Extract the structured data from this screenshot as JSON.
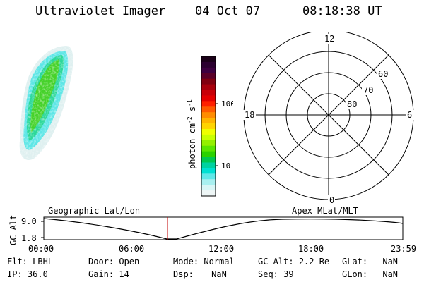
{
  "header": {
    "instrument": "Ultraviolet Imager",
    "date": "04 Oct 07",
    "time": "08:18:38 UT"
  },
  "colorbar": {
    "label": "photon cm^-2 s^-1",
    "tick_labels": [
      "100",
      "10"
    ],
    "scale": "log",
    "colors": [
      "#1a0018",
      "#2b0030",
      "#3d0040",
      "#5a0028",
      "#800010",
      "#a8000c",
      "#c80008",
      "#e40000",
      "#ff2000",
      "#ff5a00",
      "#ff8c00",
      "#ffb400",
      "#ffd400",
      "#f0ff00",
      "#c8ff00",
      "#94f000",
      "#5ae600",
      "#2ad200",
      "#00c850",
      "#00d2a0",
      "#00e0d2",
      "#60e8e8",
      "#a8f0f0",
      "#d8f6f6",
      "#eef6f6"
    ]
  },
  "polar_grid": {
    "mlt_labels": {
      "top": "12",
      "bottom": "0",
      "left": "18",
      "right": "6"
    },
    "lat_labels": [
      "60",
      "70",
      "80"
    ]
  },
  "orbit_panel": {
    "y_axis_label": "GC Alt",
    "y_ticks": [
      "9.0",
      "1.8"
    ],
    "left_title": "Geographic Lat/Lon",
    "right_title": "Apex MLat/MLT",
    "x_ticks": [
      "00:00",
      "06:00",
      "12:00",
      "18:00",
      "23:59"
    ],
    "current_time_marker": "08:18",
    "marker_color": "#c00000"
  },
  "info": {
    "flt": {
      "label": "Flt:",
      "value": "LBHL"
    },
    "ip": {
      "label": "IP:",
      "value": "36.0"
    },
    "door": {
      "label": "Door:",
      "value": "Open"
    },
    "gain": {
      "label": "Gain:",
      "value": "14"
    },
    "mode": {
      "label": "Mode:",
      "value": "Normal"
    },
    "dsp": {
      "label": "Dsp:",
      "value": "NaN"
    },
    "gcalt": {
      "label": "GC Alt:",
      "value": "2.2 Re"
    },
    "seq": {
      "label": "Seq:",
      "value": "39"
    },
    "glat": {
      "label": "GLat:",
      "value": "NaN"
    },
    "glon": {
      "label": "GLon:",
      "value": "NaN"
    }
  }
}
